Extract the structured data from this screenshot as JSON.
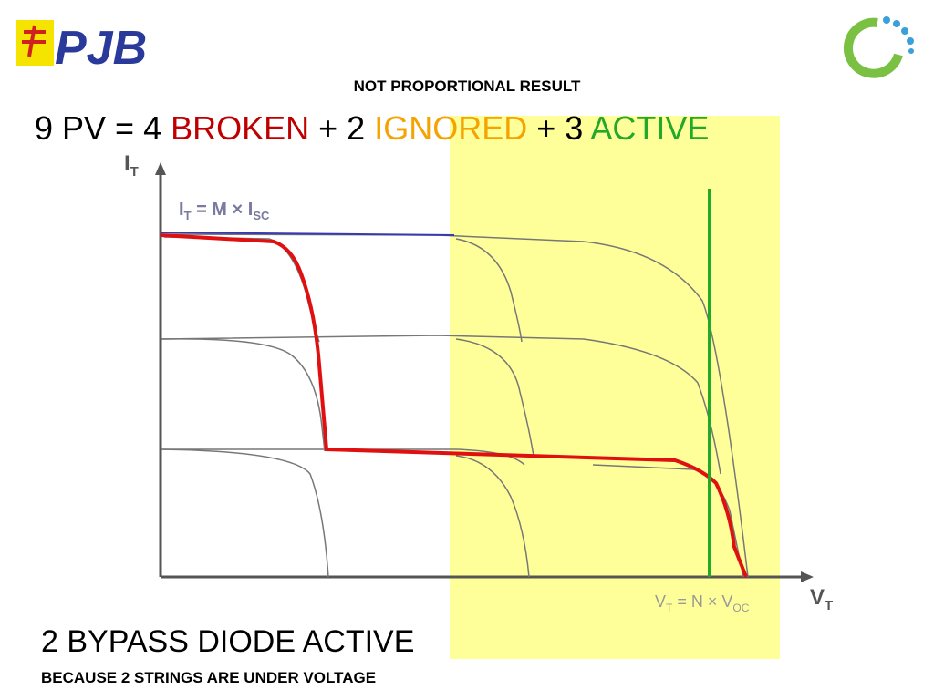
{
  "logo": {
    "text": "PJB"
  },
  "subtitle": "NOT PROPORTIONAL RESULT",
  "equation": {
    "prefix": "9 PV = 4 ",
    "broken": "BROKEN",
    "mid1": " + 2 ",
    "ignored": "IGNORED",
    "mid2": " + 3 ",
    "active": "ACTIVE"
  },
  "diagram": {
    "y_axis_label": {
      "symbol": "I",
      "subscript": "T"
    },
    "x_axis_label": {
      "symbol": "V",
      "subscript": "T"
    },
    "current_formula": {
      "lhs": "I",
      "lhs_sub": "T",
      "rhs": " = M × I",
      "rhs_sub": "SC"
    },
    "voltage_formula": {
      "lhs": "V",
      "lhs_sub": "T",
      "rhs": " = N × V",
      "rhs_sub": "OC"
    }
  },
  "caption": {
    "title": "2 BYPASS DIODE ACTIVE",
    "note": "BECAUSE 2 STRINGS ARE UNDER VOLTAGE"
  }
}
